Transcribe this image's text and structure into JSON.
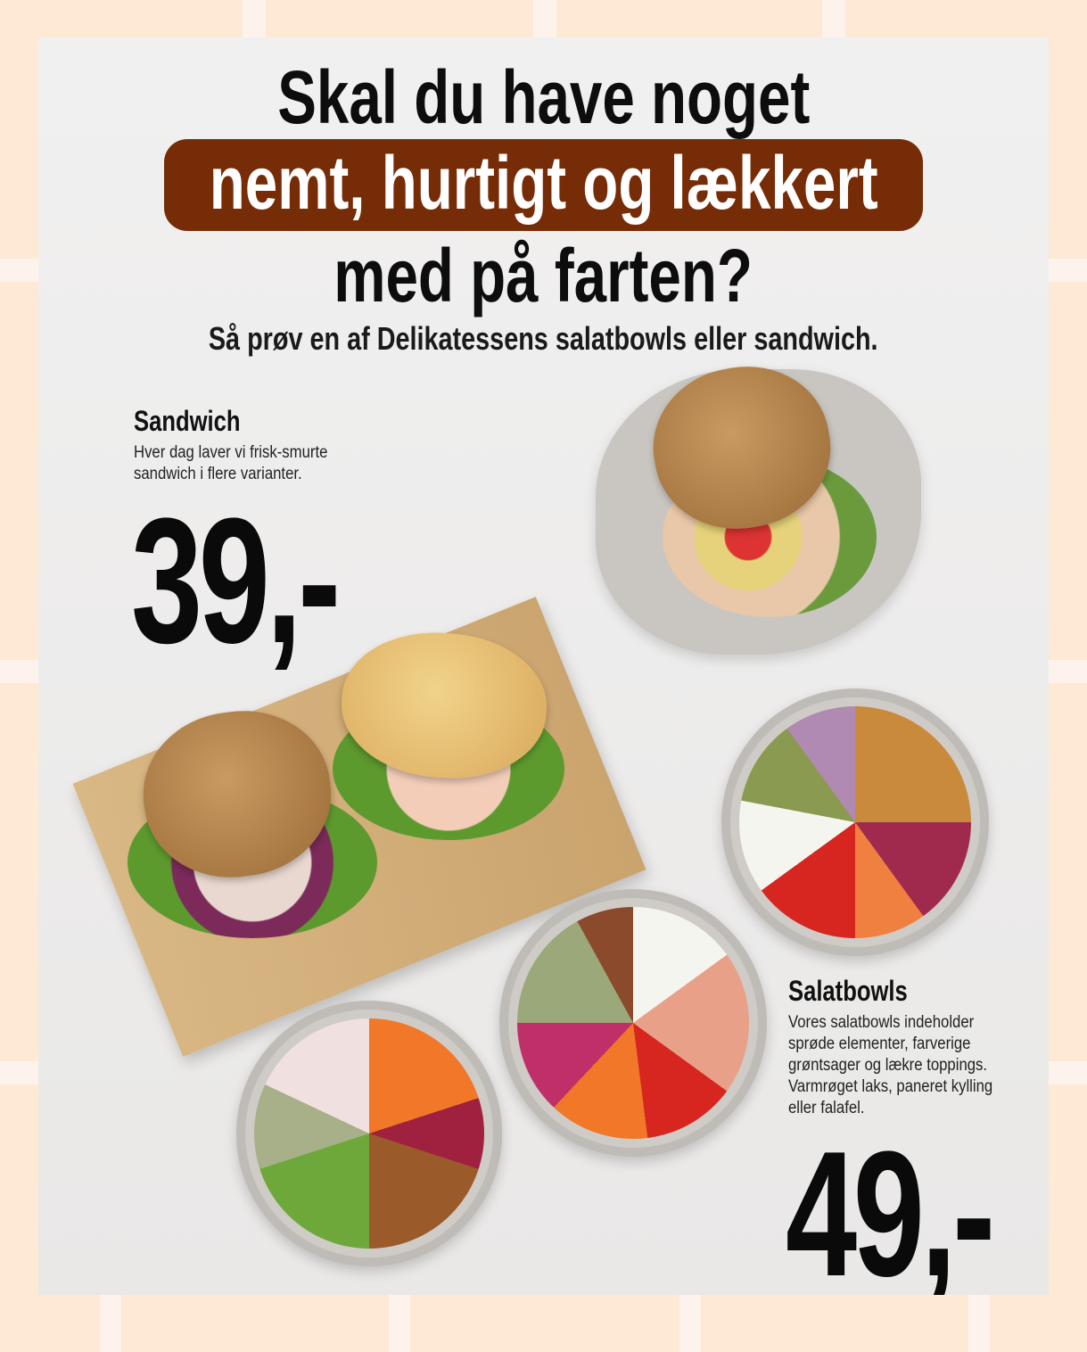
{
  "headline": {
    "line1": "Skal du have noget",
    "line2": "nemt, hurtigt og lækkert",
    "line3": "med på farten?",
    "subline": "Så prøv en af Delikatessens salatbowls eller sandwich."
  },
  "sandwich": {
    "title": "Sandwich",
    "description": "Hver dag laver vi frisk-smurte\nsandwich i flere varianter.",
    "price": "39,-"
  },
  "salatbowls": {
    "title": "Salatbowls",
    "description": "Vores salatbowls indeholder\nsprøde elementer, farverige\ngrøntsager og lækre toppings.\nVarmrøget laks, paneret kylling\neller falafel.",
    "price": "49,-"
  },
  "colors": {
    "accent": "#762c06",
    "background": "#fde9d4",
    "card": "#efeeed"
  }
}
